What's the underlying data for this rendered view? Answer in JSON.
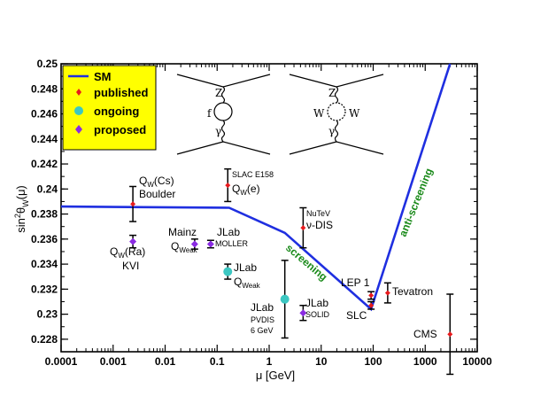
{
  "chart_data": {
    "type": "scatter",
    "xlabel": "μ [GeV]",
    "ylabel": "sin²θ_W(μ)",
    "x_scale": "log",
    "xlim": [
      0.0001,
      10000
    ],
    "ylim": [
      0.227,
      0.25
    ],
    "x_ticks": [
      "0.0001",
      "0.001",
      "0.01",
      "0.1",
      "1",
      "10",
      "100",
      "1000",
      "10000"
    ],
    "y_ticks": [
      "0.228",
      "0.23",
      "0.232",
      "0.234",
      "0.236",
      "0.238",
      "0.24",
      "0.242",
      "0.244",
      "0.246",
      "0.248",
      "0.25"
    ],
    "curve": {
      "name": "SM",
      "color": "#1f2fe0",
      "x": [
        0.0001,
        0.17,
        2,
        91.2,
        3000
      ],
      "y": [
        0.2386,
        0.2385,
        0.2365,
        0.2304,
        0.25
      ]
    },
    "series": [
      {
        "name": "published",
        "color": "#e8191c",
        "marker": "diamond"
      },
      {
        "name": "ongoing",
        "color": "#3cc7c2",
        "marker": "circle"
      },
      {
        "name": "proposed",
        "color": "#8a2be2",
        "marker": "diamond"
      }
    ],
    "points": [
      {
        "id": "qw-cs",
        "x": 0.0024,
        "y": 0.2388,
        "yerr": 0.0014,
        "status": "published",
        "label_main": "Q_W(Cs)",
        "label_sub": "Boulder"
      },
      {
        "id": "slac-e158",
        "x": 0.16,
        "y": 0.2403,
        "yerr": 0.0013,
        "status": "published",
        "label_small": "SLAC E158",
        "label_main": "Q_W(e)"
      },
      {
        "id": "nutev",
        "x": 4.5,
        "y": 0.2369,
        "yerr": 0.0016,
        "status": "published",
        "label_small": "NuTeV",
        "label_main": "ν-DIS"
      },
      {
        "id": "qw-ra",
        "x": 0.0024,
        "y": 0.2358,
        "yerr": 0.0005,
        "status": "proposed",
        "label_main": "Q_W(Ra)",
        "label_sub": "KVI"
      },
      {
        "id": "mainz",
        "x": 0.037,
        "y": 0.2356,
        "yerr": 0.0004,
        "status": "proposed",
        "label_main": "Mainz",
        "label_sub": "Q_Weak"
      },
      {
        "id": "jlab-moller",
        "x": 0.075,
        "y": 0.2356,
        "yerr": 0.0003,
        "status": "proposed",
        "label_main": "JLab",
        "label_sub": "MOLLER"
      },
      {
        "id": "jlab-qweak",
        "x": 0.16,
        "y": 0.2334,
        "yerr": 0.0006,
        "status": "ongoing",
        "label_main": "JLab",
        "label_sub": "Q_Weak"
      },
      {
        "id": "jlab-pvdis",
        "x": 2,
        "y": 0.2312,
        "yerr": 0.0031,
        "status": "ongoing",
        "label_main": "JLab",
        "label_sub": "PVDIS",
        "label_sub2": "6 GeV"
      },
      {
        "id": "jlab-solid",
        "x": 4.5,
        "y": 0.2301,
        "yerr": 0.0006,
        "status": "proposed",
        "label_main": "JLab",
        "label_sub": "SOLID"
      },
      {
        "id": "lep1",
        "x": 91.2,
        "y": 0.2315,
        "yerr": 0.0003,
        "status": "published",
        "label_main": "LEP 1"
      },
      {
        "id": "slc",
        "x": 91.2,
        "y": 0.2307,
        "yerr": 0.0003,
        "status": "published",
        "label_main": "SLC"
      },
      {
        "id": "tevatron",
        "x": 190,
        "y": 0.2317,
        "yerr": 0.0008,
        "status": "published",
        "label_main": "Tevatron"
      },
      {
        "id": "cms",
        "x": 3000,
        "y": 0.2284,
        "yerr": 0.0032,
        "status": "published",
        "label_main": "CMS"
      }
    ],
    "annotations": [
      "screening",
      "anti-screening"
    ],
    "legend_position": "top-left"
  },
  "legend": {
    "sm": "SM",
    "published": "published",
    "ongoing": "ongoing",
    "proposed": "proposed",
    "background": "#ffff00"
  },
  "annotations": {
    "screening": "screening",
    "anti_screening": "anti-screening"
  },
  "diagrams": {
    "left": {
      "top": "Z",
      "loop": "f",
      "bottom": "γ"
    },
    "right": {
      "top": "Z",
      "left": "W",
      "right": "W",
      "bottom": "γ"
    }
  }
}
